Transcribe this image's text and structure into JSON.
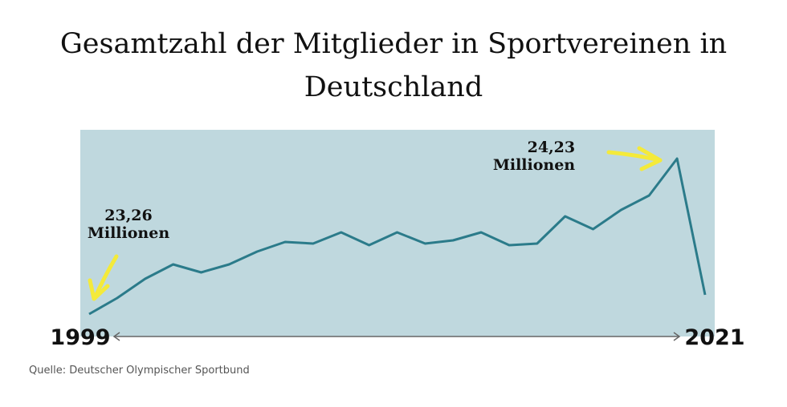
{
  "chart_data": {
    "type": "line",
    "title": "Gesamtzahl der Mitglieder in Sportvereinen in Deutschland",
    "x": [
      1999,
      2000,
      2001,
      2002,
      2003,
      2004,
      2005,
      2006,
      2007,
      2008,
      2009,
      2010,
      2011,
      2012,
      2013,
      2014,
      2015,
      2016,
      2017,
      2018,
      2019,
      2020,
      2021
    ],
    "values": [
      23.26,
      23.36,
      23.48,
      23.57,
      23.52,
      23.57,
      23.65,
      23.71,
      23.7,
      23.77,
      23.69,
      23.77,
      23.7,
      23.72,
      23.77,
      23.69,
      23.7,
      23.87,
      23.79,
      23.91,
      24.0,
      24.23,
      23.38
    ],
    "value_labels": [
      "23,26",
      null,
      null,
      null,
      null,
      null,
      null,
      null,
      null,
      null,
      null,
      null,
      null,
      null,
      null,
      null,
      null,
      null,
      null,
      null,
      null,
      "24,23",
      null
    ],
    "value_unit": "Millionen",
    "color": "#2b7b8a",
    "background": "#bfd8de",
    "xlim": [
      1999,
      2021
    ],
    "xticks": [
      1999,
      2021
    ],
    "ylim": [
      23.12,
      24.41
    ],
    "source": "Quelle: Deutscher Olympischer Sportbund"
  }
}
